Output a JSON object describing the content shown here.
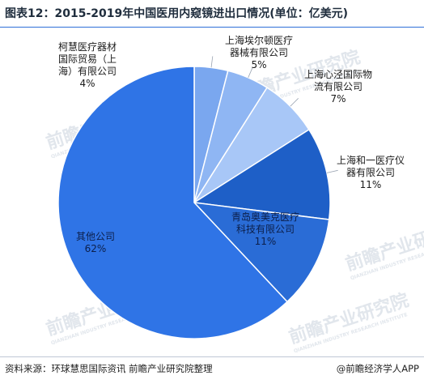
{
  "header": {
    "title": "图表12：2015-2019年中国医用内窥镜进出口情况(单位：亿美元)"
  },
  "footer": {
    "source": "资料来源：环球慧思国际资讯 前瞻产业研究院整理",
    "brand": "@前瞻经济学人APP"
  },
  "watermark": {
    "text": "前瞻产业研究院",
    "sub": "QIANZHAN INDUSTRY RESEARCH INSTITUTE"
  },
  "chart_data": {
    "type": "pie",
    "title": "",
    "start_angle_deg": 0,
    "direction": "clockwise",
    "slices": [
      {
        "name": "柯慧医疗器材国际贸易（上海）有限公司",
        "label_lines": [
          "柯慧医疗器材",
          "国际贸易（上",
          "海）有限公司"
        ],
        "value": 4,
        "value_label": "4%",
        "color": "#7aa7ef"
      },
      {
        "name": "上海埃尔顿医疗器械有限公司",
        "label_lines": [
          "上海埃尔顿医疗",
          "器械有限公司"
        ],
        "value": 5,
        "value_label": "5%",
        "color": "#8fb6f3"
      },
      {
        "name": "上海心泾国际物流有限公司",
        "label_lines": [
          "上海心泾国际物",
          "流有限公司"
        ],
        "value": 7,
        "value_label": "7%",
        "color": "#a8c7f7"
      },
      {
        "name": "上海和一医疗仪器有限公司",
        "label_lines": [
          "上海和一医疗仪",
          "器有限公司"
        ],
        "value": 11,
        "value_label": "11%",
        "color": "#1e5fc7"
      },
      {
        "name": "青岛奥美克医疗科技有限公司",
        "label_lines": [
          "青岛奥美克医疗",
          "科技有限公司"
        ],
        "value": 11,
        "value_label": "11%",
        "color": "#2a6cd6"
      },
      {
        "name": "其他公司",
        "label_lines": [
          "其他公司"
        ],
        "value": 62,
        "value_label": "62%",
        "color": "#2f74e6"
      }
    ]
  }
}
